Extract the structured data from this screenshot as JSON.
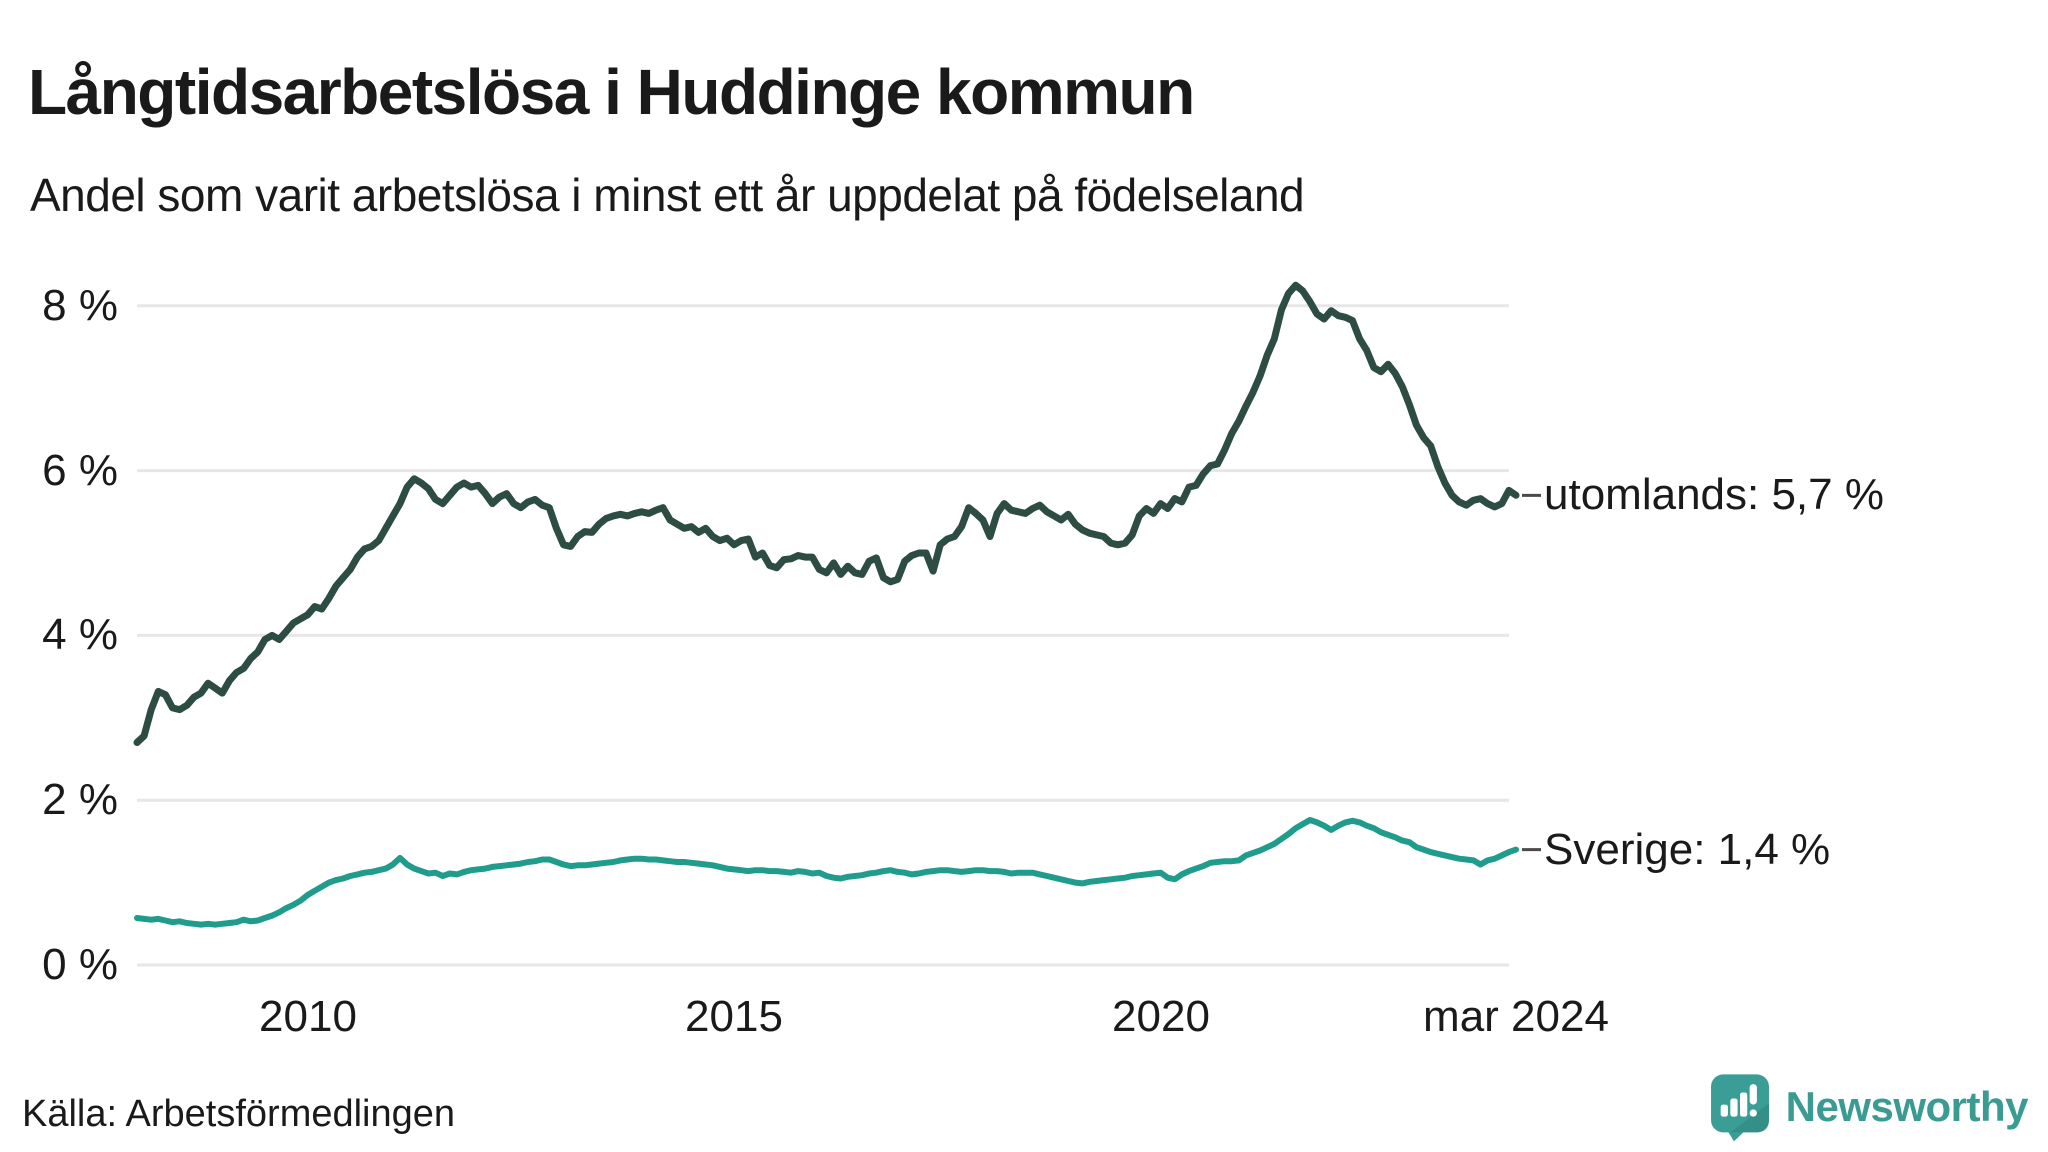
{
  "header": {
    "title": "Långtidsarbetslösa i Huddinge kommun",
    "subtitle": "Andel som varit arbetslösa i minst ett år uppdelat på födelseland"
  },
  "footer": {
    "source": "Källa: Arbetsförmedlingen",
    "brand": "Newsworthy"
  },
  "colors": {
    "utomlands_line": "#2c4c44",
    "sverige_line": "#1f9c8c",
    "grid": "#e7e7e7",
    "text": "#1a1a1a",
    "brand_teal": "#3a9b93",
    "label_dash": "#4a4a4a"
  },
  "icons": {
    "brand_icon": "newsworthy-speech-bubble-bar-chart"
  },
  "chart_data": {
    "type": "line",
    "title": "Långtidsarbetslösa i Huddinge kommun",
    "subtitle": "Andel som varit arbetslösa i minst ett år uppdelat på födelseland",
    "xlabel": "",
    "ylabel": "%",
    "grid": true,
    "legend_position": "right-end-labels",
    "xlim": [
      2008.0,
      2024.3
    ],
    "ylim": [
      0,
      8.6
    ],
    "y_ticks": [
      {
        "v": 8,
        "label": "8 %"
      },
      {
        "v": 6,
        "label": "6 %"
      },
      {
        "v": 4,
        "label": "4 %"
      },
      {
        "v": 2,
        "label": "2 %"
      },
      {
        "v": 0,
        "label": "0 %"
      }
    ],
    "x_ticks": [
      {
        "x": 2010,
        "label": "2010"
      },
      {
        "x": 2015,
        "label": "2015"
      },
      {
        "x": 2020,
        "label": "2020"
      },
      {
        "x": 2024.167,
        "label": "mar 2024"
      }
    ],
    "x_unit": "decimal_year_monthly",
    "series": [
      {
        "name": "utomlands",
        "label": "utomlands: 5,7 %",
        "latest_value": 5.7,
        "color": "#2c4c44",
        "x_start": 2008.0,
        "x_step": 0.0833333,
        "values": [
          2.7,
          2.78,
          3.1,
          3.32,
          3.28,
          3.12,
          3.1,
          3.15,
          3.25,
          3.3,
          3.42,
          3.36,
          3.3,
          3.45,
          3.55,
          3.6,
          3.72,
          3.8,
          3.95,
          4.0,
          3.95,
          4.05,
          4.15,
          4.2,
          4.25,
          4.35,
          4.32,
          4.45,
          4.6,
          4.7,
          4.8,
          4.95,
          5.05,
          5.08,
          5.15,
          5.3,
          5.45,
          5.6,
          5.8,
          5.9,
          5.85,
          5.78,
          5.65,
          5.6,
          5.7,
          5.8,
          5.85,
          5.8,
          5.82,
          5.72,
          5.6,
          5.68,
          5.72,
          5.6,
          5.55,
          5.62,
          5.65,
          5.58,
          5.55,
          5.3,
          5.1,
          5.08,
          5.2,
          5.26,
          5.25,
          5.35,
          5.42,
          5.45,
          5.47,
          5.45,
          5.48,
          5.5,
          5.48,
          5.52,
          5.55,
          5.4,
          5.35,
          5.3,
          5.32,
          5.25,
          5.3,
          5.2,
          5.15,
          5.18,
          5.1,
          5.15,
          5.17,
          4.95,
          5.0,
          4.85,
          4.82,
          4.92,
          4.93,
          4.97,
          4.95,
          4.95,
          4.8,
          4.76,
          4.88,
          4.74,
          4.84,
          4.76,
          4.74,
          4.9,
          4.94,
          4.7,
          4.65,
          4.68,
          4.9,
          4.97,
          5.0,
          5.0,
          4.78,
          5.1,
          5.17,
          5.2,
          5.32,
          5.55,
          5.48,
          5.4,
          5.2,
          5.48,
          5.6,
          5.52,
          5.5,
          5.48,
          5.54,
          5.58,
          5.5,
          5.45,
          5.4,
          5.47,
          5.35,
          5.28,
          5.24,
          5.22,
          5.2,
          5.12,
          5.1,
          5.12,
          5.22,
          5.45,
          5.54,
          5.48,
          5.6,
          5.54,
          5.66,
          5.62,
          5.8,
          5.82,
          5.96,
          6.06,
          6.08,
          6.25,
          6.45,
          6.6,
          6.78,
          6.95,
          7.15,
          7.4,
          7.6,
          7.95,
          8.15,
          8.25,
          8.18,
          8.05,
          7.9,
          7.84,
          7.94,
          7.88,
          7.86,
          7.82,
          7.6,
          7.46,
          7.25,
          7.2,
          7.29,
          7.18,
          7.02,
          6.8,
          6.55,
          6.4,
          6.3,
          6.05,
          5.85,
          5.7,
          5.62,
          5.58,
          5.64,
          5.66,
          5.6,
          5.56,
          5.6,
          5.76,
          5.7
        ]
      },
      {
        "name": "sverige",
        "label": "Sverige: 1,4 %",
        "latest_value": 1.4,
        "color": "#1f9c8c",
        "x_start": 2008.0,
        "x_step": 0.0833333,
        "values": [
          0.57,
          0.56,
          0.55,
          0.56,
          0.54,
          0.52,
          0.53,
          0.51,
          0.5,
          0.49,
          0.5,
          0.49,
          0.5,
          0.51,
          0.52,
          0.55,
          0.53,
          0.54,
          0.57,
          0.6,
          0.64,
          0.69,
          0.73,
          0.78,
          0.85,
          0.9,
          0.95,
          1.0,
          1.03,
          1.05,
          1.08,
          1.1,
          1.12,
          1.13,
          1.15,
          1.17,
          1.22,
          1.3,
          1.22,
          1.17,
          1.14,
          1.11,
          1.12,
          1.08,
          1.11,
          1.1,
          1.13,
          1.15,
          1.16,
          1.17,
          1.19,
          1.2,
          1.21,
          1.22,
          1.23,
          1.25,
          1.26,
          1.28,
          1.28,
          1.25,
          1.22,
          1.2,
          1.21,
          1.21,
          1.22,
          1.23,
          1.24,
          1.25,
          1.27,
          1.28,
          1.29,
          1.29,
          1.28,
          1.28,
          1.27,
          1.26,
          1.25,
          1.25,
          1.24,
          1.23,
          1.22,
          1.21,
          1.19,
          1.17,
          1.16,
          1.15,
          1.14,
          1.15,
          1.15,
          1.14,
          1.14,
          1.13,
          1.12,
          1.14,
          1.13,
          1.11,
          1.12,
          1.08,
          1.06,
          1.05,
          1.07,
          1.08,
          1.09,
          1.11,
          1.12,
          1.14,
          1.15,
          1.13,
          1.12,
          1.1,
          1.11,
          1.13,
          1.14,
          1.15,
          1.15,
          1.14,
          1.13,
          1.14,
          1.15,
          1.15,
          1.14,
          1.14,
          1.13,
          1.11,
          1.12,
          1.12,
          1.12,
          1.1,
          1.08,
          1.06,
          1.04,
          1.02,
          1.0,
          0.99,
          1.01,
          1.02,
          1.03,
          1.04,
          1.05,
          1.06,
          1.08,
          1.09,
          1.1,
          1.11,
          1.12,
          1.06,
          1.04,
          1.1,
          1.14,
          1.17,
          1.2,
          1.24,
          1.25,
          1.26,
          1.26,
          1.27,
          1.33,
          1.36,
          1.39,
          1.43,
          1.47,
          1.53,
          1.59,
          1.66,
          1.71,
          1.76,
          1.73,
          1.69,
          1.64,
          1.69,
          1.73,
          1.75,
          1.73,
          1.69,
          1.66,
          1.61,
          1.58,
          1.55,
          1.51,
          1.49,
          1.43,
          1.4,
          1.37,
          1.35,
          1.33,
          1.31,
          1.29,
          1.28,
          1.27,
          1.22,
          1.27,
          1.29,
          1.33,
          1.37,
          1.4
        ]
      }
    ]
  }
}
